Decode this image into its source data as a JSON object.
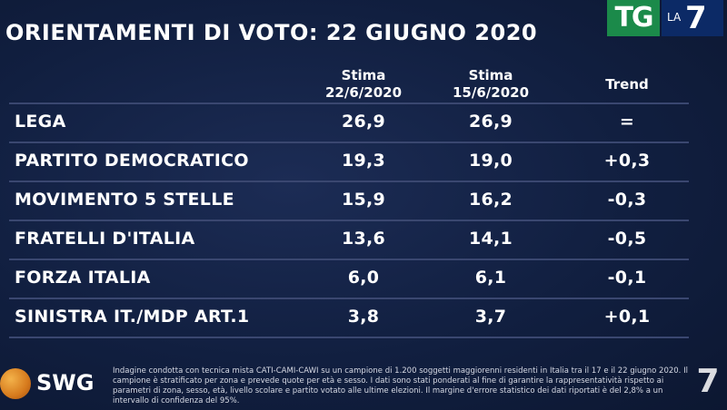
{
  "title": "ORIENTAMENTI DI VOTO: 22 GIUGNO 2020",
  "logo": {
    "tg": "TG",
    "la": "LA",
    "seven": "7"
  },
  "columns": {
    "current": {
      "label": "Stima",
      "date": "22/6/2020"
    },
    "previous": {
      "label": "Stima",
      "date": "15/6/2020"
    },
    "trend": "Trend"
  },
  "rows": [
    {
      "party": "LEGA",
      "current": "26,9",
      "previous": "26,9",
      "trend": "="
    },
    {
      "party": "PARTITO DEMOCRATICO",
      "current": "19,3",
      "previous": "19,0",
      "trend": "+0,3"
    },
    {
      "party": "MOVIMENTO 5 STELLE",
      "current": "15,9",
      "previous": "16,2",
      "trend": "-0,3"
    },
    {
      "party": "FRATELLI D'ITALIA",
      "current": "13,6",
      "previous": "14,1",
      "trend": "-0,5"
    },
    {
      "party": "FORZA ITALIA",
      "current": "6,0",
      "previous": "6,1",
      "trend": "-0,1"
    },
    {
      "party": "SINISTRA IT./MDP ART.1",
      "current": "3,8",
      "previous": "3,7",
      "trend": "+0,1"
    }
  ],
  "footer": {
    "brand": "SWG",
    "note": "Indagine condotta con tecnica mista CATI-CAMI-CAWI su un campione di 1.200 soggetti maggiorenni residenti in Italia tra il 17 e il 22 giugno 2020. Il campione è stratificato per zona e prevede quote per età e sesso. I dati sono stati ponderati al fine di garantire la rappresentatività rispetto ai parametri di zona, sesso, età, livello scolare e partito votato alle ultime elezioni. Il margine d'errore statistico dei dati riportati è del 2,8% a un intervallo di confidenza del 95%.",
    "corner_logo": "7"
  },
  "colors": {
    "background": "#101d3c",
    "tg_green": "#1b8a4a",
    "la7_blue": "#0c2a66",
    "divider": "#3a4770"
  }
}
